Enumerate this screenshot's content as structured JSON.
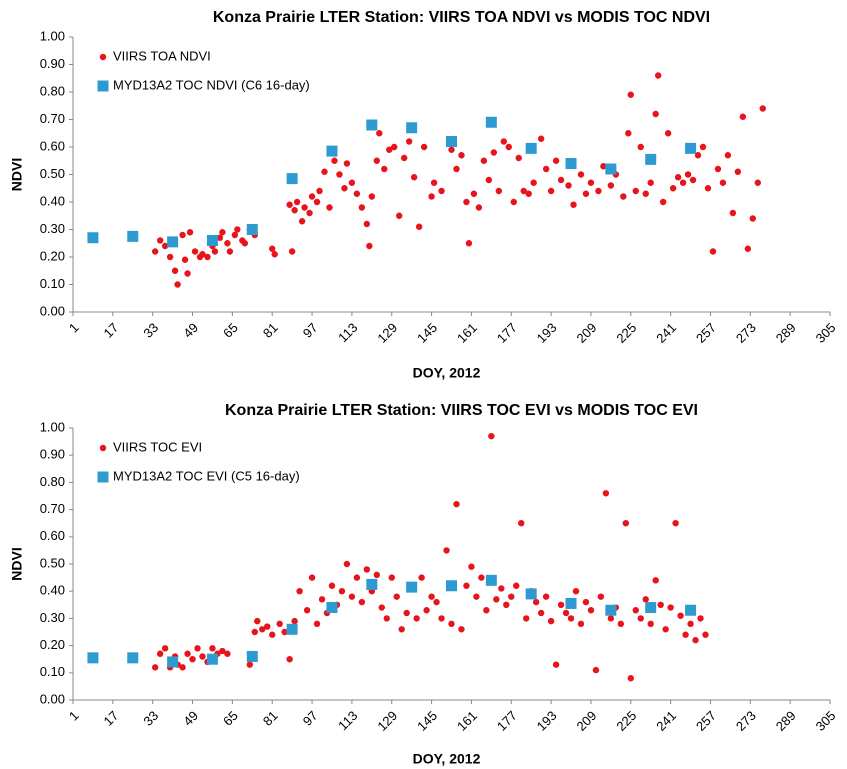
{
  "chart_data": [
    {
      "type": "scatter",
      "title": "Konza Prairie LTER Station: VIIRS TOA NDVI vs MODIS TOC NDVI",
      "xlabel": "DOY, 2012",
      "ylabel": "NDVI",
      "xlim": [
        1,
        305
      ],
      "xticks": [
        1,
        17,
        33,
        49,
        65,
        81,
        97,
        113,
        129,
        145,
        161,
        177,
        193,
        209,
        225,
        241,
        257,
        273,
        289,
        305
      ],
      "ylim": [
        0,
        1
      ],
      "yticks": [
        {
          "value": 0,
          "label": "0.00"
        },
        {
          "value": 0.1,
          "label": "0.10"
        },
        {
          "value": 0.2,
          "label": "0.20"
        },
        {
          "value": 0.3,
          "label": "0.30"
        },
        {
          "value": 0.4,
          "label": "0.40"
        },
        {
          "value": 0.5,
          "label": "0.50"
        },
        {
          "value": 0.6,
          "label": "0.60"
        },
        {
          "value": 0.7,
          "label": "0.70"
        },
        {
          "value": 0.8,
          "label": "0.80"
        },
        {
          "value": 0.9,
          "label": "0.90"
        },
        {
          "value": 1,
          "label": "1.00"
        }
      ],
      "legend": "upper left",
      "series": [
        {
          "name": "VIIRS TOA NDVI",
          "color": "#e8141b",
          "marker": "circle",
          "x": [
            34,
            36,
            38,
            40,
            42,
            43,
            45,
            46,
            47,
            48,
            50,
            52,
            53,
            55,
            57,
            58,
            60,
            61,
            63,
            64,
            66,
            67,
            69,
            70,
            72,
            74,
            81,
            82,
            88,
            89,
            90,
            91,
            93,
            94,
            96,
            97,
            99,
            100,
            102,
            104,
            106,
            108,
            110,
            111,
            113,
            115,
            117,
            119,
            120,
            121,
            123,
            124,
            126,
            128,
            130,
            132,
            134,
            136,
            138,
            140,
            142,
            145,
            146,
            149,
            153,
            155,
            157,
            159,
            160,
            162,
            164,
            166,
            168,
            170,
            172,
            174,
            176,
            178,
            180,
            182,
            184,
            186,
            189,
            191,
            193,
            195,
            197,
            200,
            202,
            205,
            207,
            209,
            212,
            214,
            217,
            219,
            222,
            224,
            225,
            227,
            229,
            231,
            233,
            235,
            236,
            238,
            240,
            242,
            244,
            246,
            248,
            250,
            252,
            254,
            256,
            258,
            260,
            262,
            264,
            266,
            268,
            270,
            272,
            274,
            276,
            278
          ],
          "values": [
            0.22,
            0.26,
            0.24,
            0.2,
            0.15,
            0.1,
            0.28,
            0.19,
            0.14,
            0.29,
            0.22,
            0.2,
            0.21,
            0.2,
            0.24,
            0.22,
            0.27,
            0.29,
            0.25,
            0.22,
            0.28,
            0.3,
            0.26,
            0.25,
            0.3,
            0.28,
            0.23,
            0.21,
            0.39,
            0.22,
            0.37,
            0.4,
            0.33,
            0.38,
            0.36,
            0.42,
            0.4,
            0.44,
            0.51,
            0.38,
            0.55,
            0.5,
            0.45,
            0.54,
            0.47,
            0.43,
            0.38,
            0.32,
            0.24,
            0.42,
            0.55,
            0.65,
            0.52,
            0.59,
            0.6,
            0.35,
            0.56,
            0.62,
            0.49,
            0.31,
            0.6,
            0.42,
            0.47,
            0.44,
            0.59,
            0.52,
            0.57,
            0.4,
            0.25,
            0.43,
            0.38,
            0.55,
            0.48,
            0.58,
            0.44,
            0.62,
            0.6,
            0.4,
            0.56,
            0.44,
            0.43,
            0.47,
            0.63,
            0.52,
            0.44,
            0.55,
            0.48,
            0.46,
            0.39,
            0.5,
            0.43,
            0.47,
            0.44,
            0.53,
            0.46,
            0.5,
            0.42,
            0.65,
            0.79,
            0.44,
            0.6,
            0.43,
            0.47,
            0.72,
            0.86,
            0.4,
            0.65,
            0.45,
            0.49,
            0.47,
            0.5,
            0.48,
            0.57,
            0.6,
            0.45,
            0.22,
            0.52,
            0.47,
            0.57,
            0.36,
            0.51,
            0.71,
            0.23,
            0.34,
            0.47,
            0.74
          ]
        },
        {
          "name": "MYD13A2 TOC NDVI (C6 16-day)",
          "color": "#2e9bd0",
          "marker": "square",
          "x": [
            9,
            25,
            41,
            57,
            73,
            89,
            105,
            121,
            137,
            153,
            169,
            185,
            201,
            217,
            233,
            249
          ],
          "values": [
            0.27,
            0.275,
            0.255,
            0.26,
            0.3,
            0.485,
            0.585,
            0.68,
            0.67,
            0.62,
            0.69,
            0.595,
            0.54,
            0.52,
            0.555,
            0.595
          ]
        }
      ]
    },
    {
      "type": "scatter",
      "title": "Konza Prairie LTER Station: VIIRS TOC EVI vs MODIS TOC EVI",
      "xlabel": "DOY, 2012",
      "ylabel": "NDVI",
      "xlim": [
        1,
        305
      ],
      "xticks": [
        1,
        17,
        33,
        49,
        65,
        81,
        97,
        113,
        129,
        145,
        161,
        177,
        193,
        209,
        225,
        241,
        257,
        273,
        289,
        305
      ],
      "ylim": [
        0,
        1
      ],
      "yticks": [
        {
          "value": 0,
          "label": "0.00"
        },
        {
          "value": 0.1,
          "label": "0.10"
        },
        {
          "value": 0.2,
          "label": "0.20"
        },
        {
          "value": 0.3,
          "label": "0.30"
        },
        {
          "value": 0.4,
          "label": "0.40"
        },
        {
          "value": 0.5,
          "label": "0.50"
        },
        {
          "value": 0.6,
          "label": "0.60"
        },
        {
          "value": 0.7,
          "label": "0.70"
        },
        {
          "value": 0.8,
          "label": "0.80"
        },
        {
          "value": 0.9,
          "label": "0.90"
        },
        {
          "value": 1,
          "label": "1.00"
        }
      ],
      "legend": "upper left",
      "series": [
        {
          "name": "VIIRS TOC EVI",
          "color": "#e8141b",
          "marker": "circle",
          "x": [
            34,
            36,
            38,
            40,
            42,
            43,
            45,
            47,
            49,
            51,
            53,
            55,
            57,
            59,
            61,
            63,
            72,
            74,
            75,
            77,
            79,
            81,
            84,
            86,
            88,
            90,
            92,
            95,
            97,
            99,
            101,
            103,
            105,
            107,
            109,
            111,
            113,
            115,
            117,
            119,
            121,
            123,
            125,
            127,
            129,
            131,
            133,
            135,
            137,
            139,
            141,
            143,
            145,
            147,
            149,
            151,
            153,
            155,
            157,
            159,
            161,
            163,
            165,
            167,
            169,
            171,
            173,
            175,
            177,
            179,
            181,
            183,
            185,
            187,
            189,
            191,
            193,
            195,
            197,
            199,
            201,
            203,
            205,
            207,
            209,
            211,
            213,
            215,
            217,
            219,
            221,
            223,
            225,
            227,
            229,
            231,
            233,
            235,
            237,
            239,
            241,
            243,
            245,
            247,
            249,
            251,
            253,
            255
          ],
          "values": [
            0.12,
            0.17,
            0.19,
            0.12,
            0.16,
            0.13,
            0.12,
            0.17,
            0.15,
            0.19,
            0.16,
            0.14,
            0.19,
            0.17,
            0.18,
            0.17,
            0.13,
            0.25,
            0.29,
            0.26,
            0.27,
            0.24,
            0.28,
            0.25,
            0.15,
            0.29,
            0.4,
            0.33,
            0.45,
            0.28,
            0.37,
            0.32,
            0.42,
            0.35,
            0.4,
            0.5,
            0.38,
            0.45,
            0.36,
            0.48,
            0.4,
            0.46,
            0.34,
            0.3,
            0.45,
            0.38,
            0.26,
            0.32,
            0.41,
            0.3,
            0.45,
            0.33,
            0.38,
            0.36,
            0.3,
            0.55,
            0.28,
            0.72,
            0.26,
            0.42,
            0.49,
            0.38,
            0.45,
            0.33,
            0.97,
            0.37,
            0.41,
            0.35,
            0.38,
            0.42,
            0.65,
            0.3,
            0.4,
            0.36,
            0.32,
            0.38,
            0.29,
            0.13,
            0.35,
            0.32,
            0.3,
            0.4,
            0.28,
            0.36,
            0.33,
            0.11,
            0.38,
            0.76,
            0.3,
            0.34,
            0.28,
            0.65,
            0.08,
            0.33,
            0.3,
            0.37,
            0.28,
            0.44,
            0.35,
            0.26,
            0.34,
            0.65,
            0.31,
            0.24,
            0.28,
            0.22,
            0.3,
            0.24
          ]
        },
        {
          "name": "MYD13A2 TOC EVI (C5 16-day)",
          "color": "#2e9bd0",
          "marker": "square",
          "x": [
            9,
            25,
            41,
            57,
            73,
            89,
            105,
            121,
            137,
            153,
            169,
            185,
            201,
            217,
            233,
            249
          ],
          "values": [
            0.155,
            0.155,
            0.14,
            0.15,
            0.16,
            0.26,
            0.34,
            0.425,
            0.415,
            0.42,
            0.44,
            0.39,
            0.355,
            0.33,
            0.34,
            0.33
          ]
        }
      ]
    }
  ]
}
